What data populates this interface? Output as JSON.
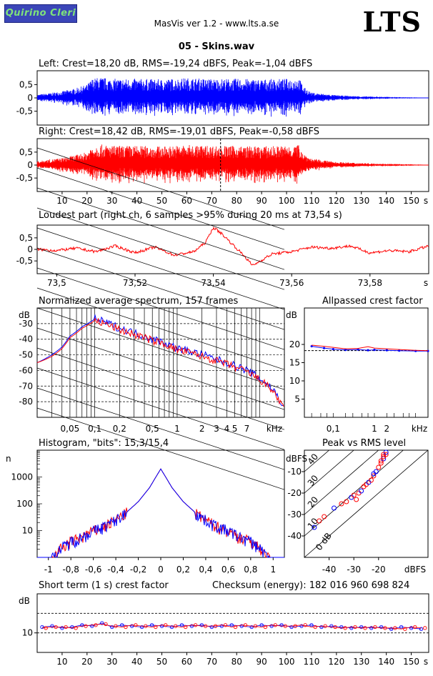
{
  "header": {
    "logo_text": "Quirino Cleri",
    "app_title": "MasVis ver 1.2 - www.lts.a.se",
    "brand": "LTS",
    "file_title": "05 - Skins.wav"
  },
  "colors": {
    "left": "#0000ff",
    "right": "#ff0000",
    "grid": "#000000"
  },
  "panels": {
    "left_title": "Left: Crest=18,20 dB, RMS=-19,24 dBFS, Peak=-1,04 dBFS",
    "right_title": "Right: Crest=18,42 dB, RMS=-19,01 dBFS, Peak=-0,58 dBFS",
    "loudest_title": "Loudest part (right ch, 6 samples >95% during 20 ms at 73,54 s)",
    "spectrum_title": "Normalized average spectrum, 157 frames",
    "allpass_title": "Allpassed crest factor",
    "histogram_title": "Histogram, \"bits\": 15,3/15,4",
    "peakrms_title": "Peak vs RMS level",
    "crest_title": "Short term (1 s) crest factor",
    "checksum": "Checksum (energy):   182 016 960 698 824"
  },
  "chart_data": [
    {
      "type": "line",
      "name": "left-waveform",
      "ylim": [
        -1,
        1
      ],
      "yticks": [
        "0,5",
        "0",
        "-0,5"
      ],
      "xlim": [
        0,
        157
      ],
      "envelope_x": [
        0,
        5,
        10,
        15,
        20,
        22,
        25,
        30,
        40,
        50,
        60,
        70,
        80,
        90,
        100,
        105,
        107,
        110,
        120,
        130,
        140,
        150,
        157
      ],
      "envelope_y": [
        0.12,
        0.18,
        0.25,
        0.35,
        0.5,
        0.72,
        0.78,
        0.72,
        0.72,
        0.7,
        0.75,
        0.72,
        0.72,
        0.7,
        0.72,
        0.75,
        0.4,
        0.2,
        0.1,
        0.06,
        0.04,
        0.02,
        0.01
      ]
    },
    {
      "type": "line",
      "name": "right-waveform",
      "ylim": [
        -1,
        1
      ],
      "yticks": [
        "0,5",
        "0",
        "-0,5"
      ],
      "xlim": [
        0,
        157
      ],
      "xticks": [
        "10",
        "20",
        "30",
        "40",
        "50",
        "60",
        "70",
        "80",
        "90",
        "100",
        "110",
        "120",
        "130",
        "140",
        "150"
      ],
      "xunit": "s",
      "marker_x": 73.54,
      "envelope_x": [
        0,
        5,
        10,
        15,
        20,
        22,
        25,
        30,
        40,
        50,
        60,
        70,
        80,
        90,
        100,
        105,
        107,
        110,
        120,
        130,
        140,
        150,
        157
      ],
      "envelope_y": [
        0.15,
        0.22,
        0.28,
        0.38,
        0.5,
        0.75,
        0.8,
        0.75,
        0.75,
        0.72,
        0.78,
        0.75,
        0.74,
        0.72,
        0.75,
        0.78,
        0.45,
        0.25,
        0.12,
        0.08,
        0.05,
        0.03,
        0.01
      ]
    },
    {
      "type": "line",
      "name": "loudest-part",
      "ylim": [
        -1,
        1
      ],
      "yticks": [
        "0,5",
        "0",
        "-0,5"
      ],
      "xlim": [
        73.495,
        73.595
      ],
      "xticks": [
        "73,5",
        "73,52",
        "73,54",
        "73,56",
        "73,58"
      ],
      "xunit": "s",
      "x": [
        73.495,
        73.5,
        73.505,
        73.51,
        73.515,
        73.52,
        73.525,
        73.53,
        73.535,
        73.538,
        73.54,
        73.542,
        73.545,
        73.548,
        73.55,
        73.555,
        73.56,
        73.565,
        73.57,
        73.575,
        73.58,
        73.585,
        73.59,
        73.595
      ],
      "y": [
        0.0,
        -0.05,
        0.05,
        -0.1,
        0.15,
        -0.15,
        0.1,
        -0.25,
        -0.1,
        0.3,
        0.95,
        0.7,
        0.2,
        -0.3,
        -0.7,
        -0.2,
        -0.1,
        0.1,
        0.05,
        0.15,
        -0.15,
        -0.05,
        -0.1,
        0.15
      ]
    },
    {
      "type": "line",
      "name": "spectrum",
      "ylabel": "dB",
      "yticks": [
        "-30",
        "-40",
        "-50",
        "-60",
        "-70",
        "-80"
      ],
      "ylim": [
        -90,
        -20
      ],
      "xticks": [
        "0,05",
        "0,1",
        "0,2",
        "0,5",
        "1",
        "2",
        "3",
        "4",
        "5",
        "7"
      ],
      "xunit": "kHz",
      "x": [
        0.02,
        0.03,
        0.04,
        0.05,
        0.07,
        0.1,
        0.13,
        0.2,
        0.3,
        0.5,
        0.7,
        1,
        1.5,
        2,
        3,
        4,
        5,
        7,
        10,
        15,
        20
      ],
      "series": [
        {
          "y": [
            -55,
            -50,
            -45,
            -38,
            -32,
            -27,
            -29,
            -33,
            -36,
            -40,
            -42,
            -46,
            -48,
            -50,
            -53,
            -55,
            -57,
            -60,
            -65,
            -73,
            -85
          ]
        },
        {
          "y": [
            -55,
            -51,
            -46,
            -39,
            -33,
            -28,
            -30,
            -34,
            -37,
            -41,
            -43,
            -47,
            -49,
            -51,
            -54,
            -56,
            -58,
            -61,
            -66,
            -74,
            -86
          ]
        }
      ]
    },
    {
      "type": "line",
      "name": "allpassed-crest",
      "ylabel": "dB",
      "yticks": [
        "20",
        "15",
        "10",
        "5"
      ],
      "ylim": [
        0,
        30
      ],
      "xticks": [
        "0,1",
        "1",
        "2"
      ],
      "xunit": "kHz",
      "x": [
        0.03,
        0.06,
        0.1,
        0.2,
        0.4,
        0.7,
        1,
        2,
        4,
        10,
        20
      ],
      "series": [
        {
          "y": [
            19.5,
            19.0,
            18.7,
            18.5,
            18.6,
            18.4,
            18.5,
            18.4,
            18.3,
            18.2,
            18.2
          ]
        },
        {
          "y": [
            19.8,
            19.5,
            19.2,
            18.8,
            18.9,
            19.4,
            19.0,
            18.8,
            18.6,
            18.4,
            18.3
          ]
        }
      ]
    },
    {
      "type": "line",
      "name": "histogram",
      "ylabel": "n",
      "yticks": [
        "1000",
        "100",
        "10"
      ],
      "ylim": [
        1,
        10000
      ],
      "xlim": [
        -1.1,
        1.1
      ],
      "xticks": [
        "-1",
        "-0,8",
        "-0,6",
        "-0,4",
        "-0,2",
        "0",
        "0,2",
        "0,4",
        "0,6",
        "0,8",
        "1"
      ],
      "x": [
        -0.95,
        -0.9,
        -0.8,
        -0.7,
        -0.6,
        -0.5,
        -0.4,
        -0.3,
        -0.2,
        -0.1,
        -0.05,
        0,
        0.05,
        0.1,
        0.2,
        0.3,
        0.4,
        0.5,
        0.6,
        0.7,
        0.8,
        0.9,
        0.95
      ],
      "y": [
        1,
        2,
        4,
        6,
        10,
        15,
        25,
        50,
        120,
        400,
        900,
        2000,
        900,
        400,
        120,
        50,
        25,
        15,
        10,
        6,
        4,
        2,
        1
      ]
    },
    {
      "type": "scatter",
      "name": "peak-vs-rms",
      "ylabel": "dBFS",
      "xlabel": "dBFS",
      "yticks": [
        "-10",
        "-20",
        "-30",
        "-40"
      ],
      "xticks": [
        "-40",
        "-30",
        "-20"
      ],
      "xlim": [
        -50,
        0
      ],
      "ylim": [
        -50,
        0
      ],
      "diag_labels": [
        "40",
        "30",
        "20",
        "10",
        "0 dB"
      ],
      "points": [
        [
          -46,
          -36
        ],
        [
          -44,
          -33
        ],
        [
          -42,
          -31
        ],
        [
          -38,
          -27
        ],
        [
          -35,
          -25
        ],
        [
          -33,
          -24
        ],
        [
          -31,
          -22
        ],
        [
          -30,
          -21
        ],
        [
          -28,
          -20
        ],
        [
          -27,
          -19
        ],
        [
          -26,
          -17
        ],
        [
          -25,
          -16
        ],
        [
          -24,
          -15
        ],
        [
          -23,
          -14
        ],
        [
          -22,
          -12
        ],
        [
          -21,
          -10
        ],
        [
          -20,
          -8
        ],
        [
          -19,
          -6
        ],
        [
          -18,
          -4
        ],
        [
          -18,
          -3
        ],
        [
          -17,
          -2
        ],
        [
          -17,
          -1
        ],
        [
          -18,
          -2
        ],
        [
          -19,
          -5
        ],
        [
          -22,
          -11
        ],
        [
          -29,
          -23
        ]
      ]
    },
    {
      "type": "scatter",
      "name": "short-term-crest",
      "ylabel": "dB",
      "yticks": [
        "10"
      ],
      "ylim": [
        0,
        30
      ],
      "xlim": [
        0,
        157
      ],
      "xticks": [
        "10",
        "20",
        "30",
        "40",
        "50",
        "60",
        "70",
        "80",
        "90",
        "100",
        "110",
        "120",
        "130",
        "140",
        "150"
      ],
      "xunit": "s",
      "x": [
        2,
        6,
        10,
        14,
        18,
        22,
        26,
        30,
        34,
        38,
        42,
        46,
        50,
        54,
        58,
        62,
        66,
        70,
        74,
        78,
        82,
        86,
        90,
        94,
        98,
        102,
        106,
        110,
        114,
        118,
        122,
        126,
        130,
        134,
        138,
        142,
        146,
        150,
        154
      ],
      "series": [
        {
          "y": [
            13,
            13.5,
            12.5,
            13,
            14,
            13.5,
            15,
            13,
            14,
            13.5,
            13,
            14,
            13.5,
            13,
            14,
            13.5,
            14,
            13,
            13.5,
            14,
            13.5,
            13,
            14,
            13.5,
            14,
            13,
            13.5,
            14,
            13,
            13.5,
            13,
            12.5,
            13,
            12.5,
            13,
            12,
            13,
            12.5,
            12
          ]
        },
        {
          "y": [
            12.5,
            13,
            13,
            12.5,
            13.5,
            14,
            14.5,
            13.5,
            13,
            14,
            13.5,
            13,
            14,
            13.5,
            13,
            14,
            13.5,
            13.5,
            14,
            13,
            14,
            13.5,
            13,
            14,
            13.5,
            13.5,
            14,
            13,
            13.5,
            13,
            12.5,
            13,
            12.5,
            13,
            12.5,
            12.5,
            12,
            13,
            12.5
          ]
        }
      ]
    }
  ]
}
